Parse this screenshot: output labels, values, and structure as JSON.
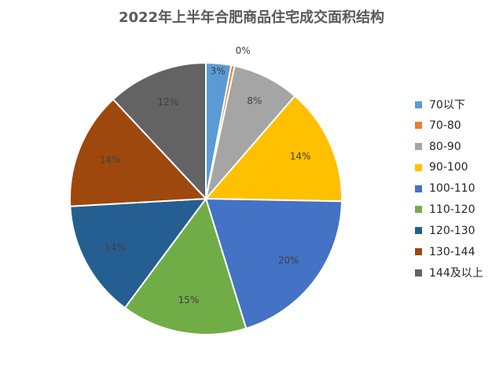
{
  "chart_data": {
    "type": "pie",
    "title": "2022年上半年合肥商品住宅成交面积结构",
    "categories": [
      "70以下",
      "70-80",
      "80-90",
      "90-100",
      "100-110",
      "110-120",
      "120-130",
      "130-144",
      "144及以上"
    ],
    "values": [
      3,
      0.4,
      8,
      14,
      20,
      15,
      14,
      14,
      12
    ],
    "data_labels": [
      "3%",
      "0%",
      "8%",
      "14%",
      "20%",
      "15%",
      "14%",
      "14%",
      "12%"
    ],
    "colors": [
      "#5B9BD5",
      "#ED7D31",
      "#A5A5A5",
      "#FFC000",
      "#4472C4",
      "#70AD47",
      "#255E91",
      "#9E480E",
      "#636363"
    ],
    "legend_position": "right",
    "start_angle": "12 o'clock",
    "direction": "clockwise"
  }
}
